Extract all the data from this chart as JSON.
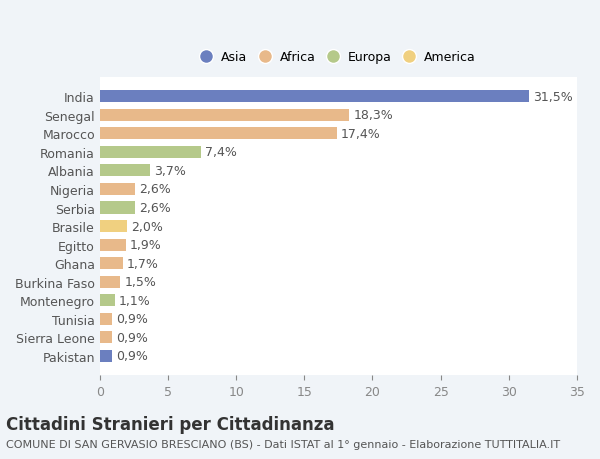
{
  "countries": [
    "India",
    "Senegal",
    "Marocco",
    "Romania",
    "Albania",
    "Nigeria",
    "Serbia",
    "Brasile",
    "Egitto",
    "Ghana",
    "Burkina Faso",
    "Montenegro",
    "Tunisia",
    "Sierra Leone",
    "Pakistan"
  ],
  "values": [
    31.5,
    18.3,
    17.4,
    7.4,
    3.7,
    2.6,
    2.6,
    2.0,
    1.9,
    1.7,
    1.5,
    1.1,
    0.9,
    0.9,
    0.9
  ],
  "labels": [
    "31,5%",
    "18,3%",
    "17,4%",
    "7,4%",
    "3,7%",
    "2,6%",
    "2,6%",
    "2,0%",
    "1,9%",
    "1,7%",
    "1,5%",
    "1,1%",
    "0,9%",
    "0,9%",
    "0,9%"
  ],
  "continents": [
    "Asia",
    "Africa",
    "Africa",
    "Europa",
    "Europa",
    "Africa",
    "Europa",
    "America",
    "Africa",
    "Africa",
    "Africa",
    "Europa",
    "Africa",
    "Africa",
    "Asia"
  ],
  "continent_colors": {
    "Asia": "#6b7fbf",
    "Africa": "#e8b98a",
    "Europa": "#b5c98a",
    "America": "#f0d080"
  },
  "legend_order": [
    "Asia",
    "Africa",
    "Europa",
    "America"
  ],
  "title": "Cittadini Stranieri per Cittadinanza",
  "subtitle": "COMUNE DI SAN GERVASIO BRESCIANO (BS) - Dati ISTAT al 1° gennaio - Elaborazione TUTTITALIA.IT",
  "xlim": [
    0,
    35
  ],
  "xticks": [
    0,
    5,
    10,
    15,
    20,
    25,
    30,
    35
  ],
  "background_color": "#f0f4f8",
  "bar_background": "#ffffff",
  "grid_color": "#ffffff",
  "label_fontsize": 9,
  "tick_fontsize": 9,
  "title_fontsize": 12,
  "subtitle_fontsize": 8
}
